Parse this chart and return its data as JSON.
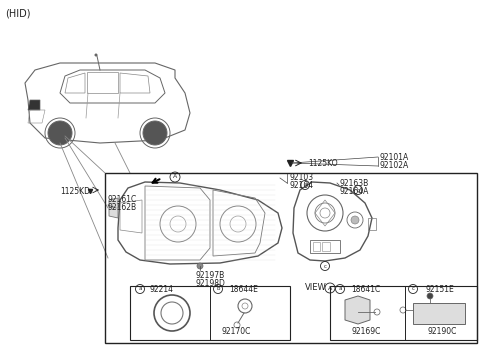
{
  "bg_color": "#ffffff",
  "border_color": "#222222",
  "text_color": "#222222",
  "line_color": "#444444",
  "hid_label": "(HID)",
  "part_labels": {
    "1125KO": "1125KO",
    "92101A": "92101A",
    "92102A": "92102A",
    "92103": "92103",
    "92104": "92104",
    "92163B": "92163B",
    "92164A": "92164A",
    "1125KD": "1125KD",
    "92161C": "92161C",
    "92162B": "92162B",
    "92197B": "92197B",
    "92198D": "92198D",
    "92214": "92214",
    "18644E": "18644E",
    "92170C": "92170C",
    "18641C": "18641C",
    "92169C": "92169C",
    "92151E": "92151E",
    "92190C": "92190C"
  },
  "layout": {
    "fig_w": 4.8,
    "fig_h": 3.48,
    "dpi": 100
  }
}
